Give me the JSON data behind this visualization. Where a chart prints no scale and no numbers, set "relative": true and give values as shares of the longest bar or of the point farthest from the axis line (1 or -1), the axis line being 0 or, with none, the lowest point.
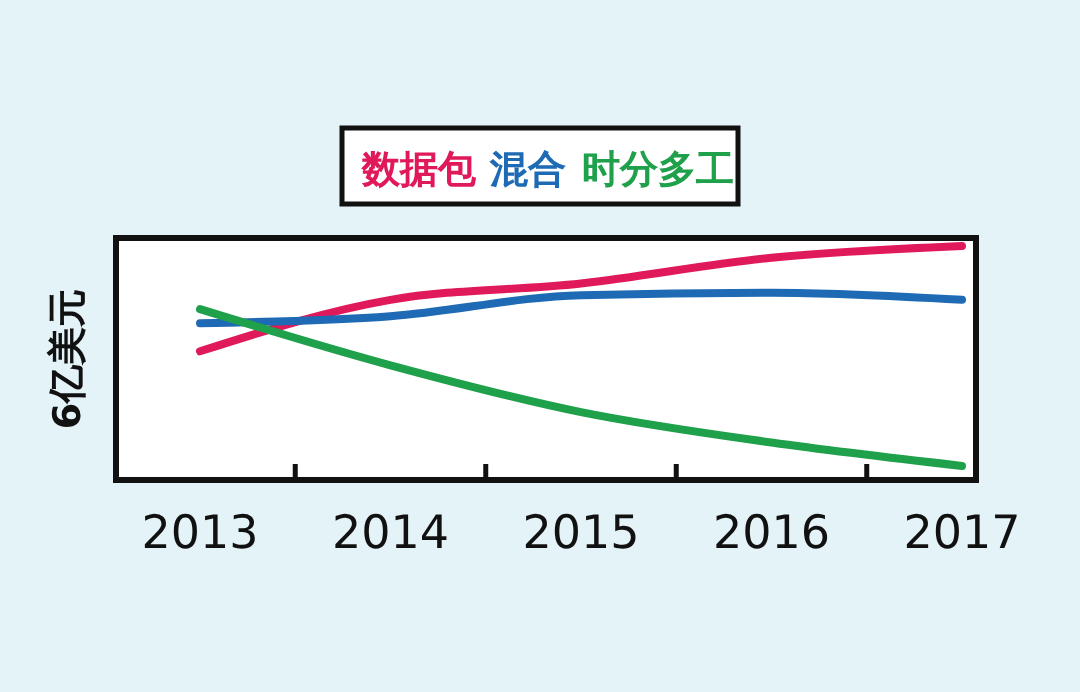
{
  "chart_data": {
    "type": "line",
    "relative": true,
    "ylabel": "6亿美元",
    "legend": "top",
    "grid": false,
    "categories": [
      "2013",
      "2014",
      "2015",
      "2016",
      "2017"
    ],
    "series": [
      {
        "name": "数据包",
        "color": "#e0195a",
        "values": [
          0.55,
          0.77,
          0.84,
          0.95,
          1
        ]
      },
      {
        "name": "混合",
        "color": "#1e6ab4",
        "values": [
          0.67,
          0.7,
          0.79,
          0.8,
          0.77
        ]
      },
      {
        "name": "时分多工",
        "color": "#1fa04a",
        "values": [
          0.73,
          0.49,
          0.29,
          0.16,
          0.06
        ]
      }
    ]
  }
}
